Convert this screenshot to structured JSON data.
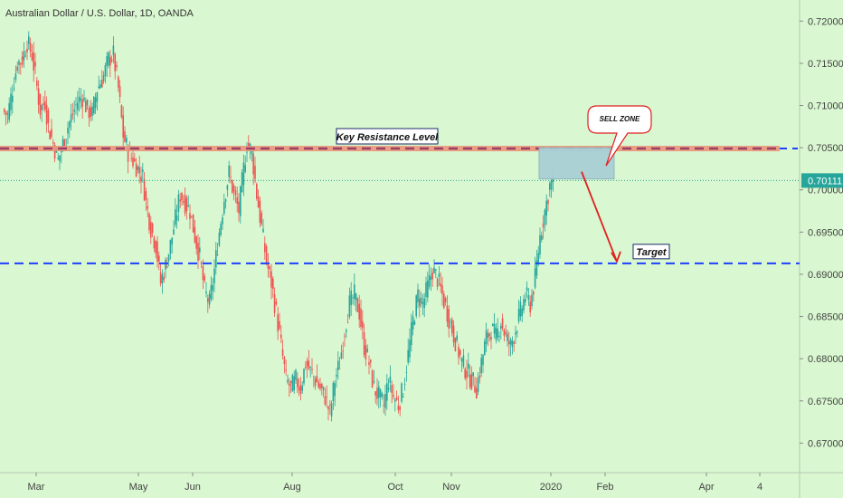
{
  "chart_data": {
    "type": "candlestick",
    "title": "Australian Dollar / U.S. Dollar, 1D, OANDA",
    "ylim": [
      0.6665,
      0.7225
    ],
    "y_ticks": [
      "0.72000",
      "0.71500",
      "0.71000",
      "0.70500",
      "0.70000",
      "0.69500",
      "0.69000",
      "0.68500",
      "0.68000",
      "0.67500",
      "0.67000"
    ],
    "x_ticks": [
      "Mar",
      "May",
      "Jun",
      "Aug",
      "Oct",
      "Nov",
      "2020",
      "Feb",
      "Apr",
      "4"
    ],
    "last_price": "0.70111",
    "colors": {
      "background": "#d9f7d0",
      "up": "#26a69a",
      "down": "#ef5350",
      "resistance_band": "#e8937a",
      "resistance_dash": "#9c3d63",
      "blue_dash": "#1e40ff",
      "sell_zone": "#a9cfd6",
      "arrow": "#e02020",
      "price_label": "#26a69a"
    },
    "key_resistance": {
      "label": "Key Resistance Level",
      "price": 0.7049
    },
    "target": {
      "label": "Target",
      "price": 0.6913
    },
    "sell_zone": {
      "label": "SELL ZONE",
      "top": 0.705,
      "bottom": 0.7013
    },
    "approx_path": [
      [
        0,
        0.7095
      ],
      [
        3,
        0.7088
      ],
      [
        6,
        0.712
      ],
      [
        9,
        0.715
      ],
      [
        12,
        0.7155
      ],
      [
        15,
        0.7175
      ],
      [
        18,
        0.716
      ],
      [
        20,
        0.7135
      ],
      [
        23,
        0.7095
      ],
      [
        26,
        0.7105
      ],
      [
        28,
        0.7075
      ],
      [
        31,
        0.7055
      ],
      [
        34,
        0.7035
      ],
      [
        37,
        0.7055
      ],
      [
        40,
        0.7075
      ],
      [
        43,
        0.709
      ],
      [
        46,
        0.7105
      ],
      [
        49,
        0.711
      ],
      [
        52,
        0.7095
      ],
      [
        55,
        0.709
      ],
      [
        58,
        0.712
      ],
      [
        62,
        0.7135
      ],
      [
        65,
        0.7155
      ],
      [
        68,
        0.716
      ],
      [
        71,
        0.712
      ],
      [
        74,
        0.7065
      ],
      [
        77,
        0.7045
      ],
      [
        80,
        0.7035
      ],
      [
        83,
        0.7025
      ],
      [
        86,
        0.7015
      ],
      [
        88,
        0.6985
      ],
      [
        91,
        0.6955
      ],
      [
        94,
        0.6935
      ],
      [
        97,
        0.689
      ],
      [
        100,
        0.691
      ],
      [
        103,
        0.6935
      ],
      [
        106,
        0.6965
      ],
      [
        109,
        0.6995
      ],
      [
        112,
        0.6985
      ],
      [
        115,
        0.6975
      ],
      [
        118,
        0.6945
      ],
      [
        121,
        0.692
      ],
      [
        124,
        0.688
      ],
      [
        127,
        0.6865
      ],
      [
        130,
        0.6905
      ],
      [
        133,
        0.695
      ],
      [
        136,
        0.699
      ],
      [
        139,
        0.702
      ],
      [
        142,
        0.6995
      ],
      [
        145,
        0.6975
      ],
      [
        148,
        0.7025
      ],
      [
        150,
        0.7055
      ],
      [
        153,
        0.7045
      ],
      [
        156,
        0.6995
      ],
      [
        159,
        0.6955
      ],
      [
        162,
        0.6915
      ],
      [
        165,
        0.689
      ],
      [
        168,
        0.6855
      ],
      [
        171,
        0.6815
      ],
      [
        174,
        0.6775
      ],
      [
        177,
        0.6765
      ],
      [
        180,
        0.6775
      ],
      [
        183,
        0.6765
      ],
      [
        186,
        0.6795
      ],
      [
        189,
        0.6785
      ],
      [
        192,
        0.6775
      ],
      [
        195,
        0.6765
      ],
      [
        198,
        0.6755
      ],
      [
        201,
        0.6735
      ],
      [
        204,
        0.6775
      ],
      [
        207,
        0.6795
      ],
      [
        210,
        0.6835
      ],
      [
        213,
        0.6865
      ],
      [
        216,
        0.6875
      ],
      [
        219,
        0.6855
      ],
      [
        222,
        0.6815
      ],
      [
        225,
        0.6795
      ],
      [
        228,
        0.6765
      ],
      [
        231,
        0.6755
      ],
      [
        234,
        0.6745
      ],
      [
        237,
        0.6775
      ],
      [
        240,
        0.6755
      ],
      [
        243,
        0.6745
      ],
      [
        246,
        0.6765
      ],
      [
        249,
        0.6805
      ],
      [
        252,
        0.6845
      ],
      [
        255,
        0.6875
      ],
      [
        258,
        0.6865
      ],
      [
        261,
        0.6885
      ],
      [
        264,
        0.6905
      ],
      [
        267,
        0.6895
      ],
      [
        270,
        0.6875
      ],
      [
        273,
        0.6855
      ],
      [
        276,
        0.6835
      ],
      [
        279,
        0.6815
      ],
      [
        282,
        0.6795
      ],
      [
        285,
        0.6785
      ],
      [
        288,
        0.6775
      ],
      [
        291,
        0.6765
      ],
      [
        294,
        0.6795
      ],
      [
        297,
        0.6825
      ],
      [
        300,
        0.6835
      ],
      [
        303,
        0.6825
      ],
      [
        306,
        0.6845
      ],
      [
        309,
        0.6825
      ],
      [
        312,
        0.6815
      ],
      [
        315,
        0.6835
      ],
      [
        318,
        0.6855
      ],
      [
        321,
        0.6875
      ],
      [
        324,
        0.6865
      ],
      [
        327,
        0.6895
      ],
      [
        330,
        0.6945
      ],
      [
        333,
        0.6975
      ],
      [
        336,
        0.7005
      ],
      [
        338,
        0.7011
      ]
    ]
  }
}
